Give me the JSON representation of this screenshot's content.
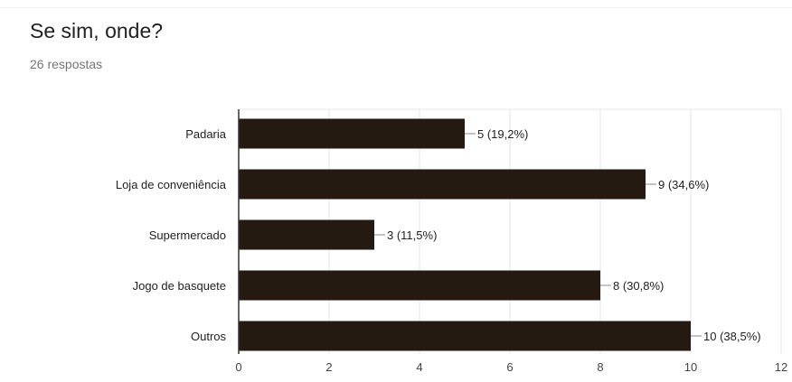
{
  "question": {
    "title": "Se sim, onde?",
    "response_count": "26 respostas"
  },
  "colors": {
    "bar": "#241a12",
    "grid": "#e6e6e6",
    "axis": "#333333",
    "label": "#222222",
    "tick": "#444444"
  },
  "chart_data": {
    "type": "bar",
    "orientation": "horizontal",
    "categories": [
      "Padaria",
      "Loja de conveniência",
      "Supermercado",
      "Jogo de basquete",
      "Outros"
    ],
    "values": [
      5,
      9,
      3,
      8,
      10
    ],
    "data_labels": [
      "5 (19,2%)",
      "9 (34,6%)",
      "3 (11,5%)",
      "8 (30,8%)",
      "10 (38,5%)"
    ],
    "xlim": [
      0,
      12
    ],
    "x_ticks": [
      0,
      2,
      4,
      6,
      8,
      10,
      12
    ],
    "grid": true,
    "title": "",
    "xlabel": "",
    "ylabel": ""
  }
}
